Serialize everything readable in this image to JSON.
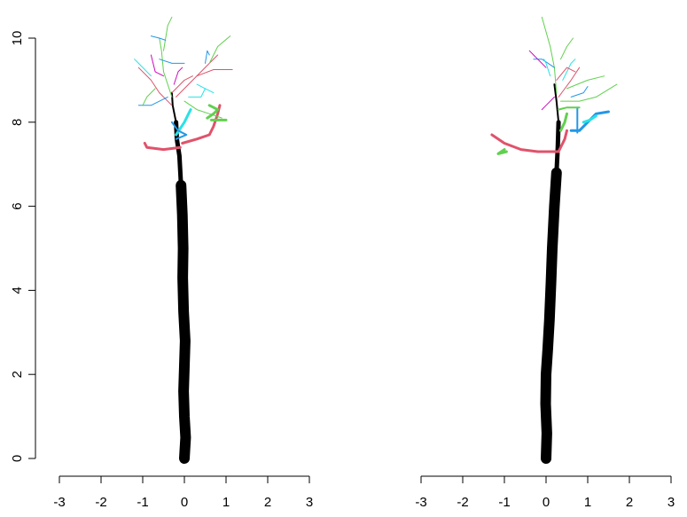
{
  "chart_data": [
    {
      "type": "line",
      "title": "",
      "xlabel": "",
      "ylabel": "",
      "xlim": [
        -3,
        3
      ],
      "ylim": [
        0,
        10
      ],
      "x_ticks": [
        "-3",
        "-2",
        "-1",
        "0",
        "1",
        "2",
        "3"
      ],
      "y_ticks": [
        "0",
        "2",
        "4",
        "6",
        "8",
        "10"
      ],
      "y_axis_shown": true,
      "grid": false,
      "legend": "none",
      "colors": {
        "trunk": "#000000",
        "red": "#DF536B",
        "green": "#61D04F",
        "blue": "#2297E6",
        "cyan": "#28E2E5",
        "magenta": "#CD0BBC"
      },
      "series": [
        {
          "color": "trunk",
          "width": 12,
          "points": [
            [
              0.0,
              0.0
            ],
            [
              0.03,
              0.5
            ],
            [
              0.0,
              1.0
            ],
            [
              -0.02,
              1.6
            ],
            [
              0.0,
              2.2
            ],
            [
              0.02,
              2.8
            ],
            [
              -0.02,
              3.5
            ],
            [
              -0.04,
              4.3
            ],
            [
              -0.03,
              5.0
            ],
            [
              -0.05,
              5.8
            ],
            [
              -0.08,
              6.5
            ]
          ]
        },
        {
          "color": "trunk",
          "width": 5,
          "points": [
            [
              -0.08,
              6.5
            ],
            [
              -0.12,
              7.2
            ],
            [
              -0.18,
              7.6
            ],
            [
              -0.2,
              8.0
            ]
          ]
        },
        {
          "color": "trunk",
          "width": 2,
          "points": [
            [
              -0.2,
              8.0
            ],
            [
              -0.28,
              8.4
            ],
            [
              -0.3,
              8.7
            ]
          ]
        },
        {
          "color": "red",
          "width": 3,
          "points": [
            [
              -0.1,
              7.4
            ],
            [
              -0.5,
              7.35
            ],
            [
              -0.9,
              7.4
            ],
            [
              -0.95,
              7.5
            ]
          ]
        },
        {
          "color": "red",
          "width": 3,
          "points": [
            [
              -0.05,
              7.5
            ],
            [
              0.3,
              7.6
            ],
            [
              0.6,
              7.7
            ],
            [
              0.7,
              7.9
            ],
            [
              0.8,
              8.2
            ],
            [
              0.85,
              8.4
            ]
          ]
        },
        {
          "color": "green",
          "width": 3,
          "points": [
            [
              0.55,
              8.1
            ],
            [
              0.7,
              8.2
            ],
            [
              0.8,
              8.3
            ],
            [
              0.6,
              8.4
            ]
          ]
        },
        {
          "color": "green",
          "width": 3,
          "points": [
            [
              0.65,
              8.05
            ],
            [
              1.0,
              8.05
            ]
          ]
        },
        {
          "color": "cyan",
          "width": 3,
          "points": [
            [
              -0.2,
              7.7
            ],
            [
              0.0,
              8.0
            ],
            [
              0.1,
              8.2
            ],
            [
              0.15,
              8.3
            ]
          ]
        },
        {
          "color": "blue",
          "width": 2,
          "points": [
            [
              -0.2,
              7.6
            ],
            [
              0.05,
              7.7
            ],
            [
              -0.15,
              7.8
            ],
            [
              -0.3,
              8.0
            ]
          ]
        },
        {
          "color": "red",
          "width": 1,
          "points": [
            [
              -0.3,
              8.4
            ],
            [
              -0.6,
              8.7
            ],
            [
              -0.8,
              9.0
            ],
            [
              -1.1,
              9.3
            ]
          ]
        },
        {
          "color": "green",
          "width": 1,
          "points": [
            [
              -0.3,
              8.6
            ],
            [
              -0.5,
              9.2
            ],
            [
              -0.55,
              9.7
            ],
            [
              -0.6,
              10.0
            ]
          ]
        },
        {
          "color": "green",
          "width": 1,
          "points": [
            [
              -0.5,
              9.7
            ],
            [
              -0.4,
              10.3
            ],
            [
              -0.3,
              10.5
            ]
          ]
        },
        {
          "color": "blue",
          "width": 1,
          "points": [
            [
              -0.6,
              9.5
            ],
            [
              -0.3,
              9.4
            ],
            [
              0.0,
              9.4
            ]
          ]
        },
        {
          "color": "cyan",
          "width": 1,
          "points": [
            [
              -0.8,
              9.1
            ],
            [
              -1.1,
              9.4
            ],
            [
              -1.2,
              9.5
            ]
          ]
        },
        {
          "color": "magenta",
          "width": 1,
          "points": [
            [
              -0.5,
              9.1
            ],
            [
              -0.7,
              9.2
            ],
            [
              -0.8,
              9.6
            ]
          ]
        },
        {
          "color": "blue",
          "width": 1,
          "points": [
            [
              -0.8,
              10.05
            ],
            [
              -0.6,
              10.0
            ],
            [
              -0.45,
              9.95
            ]
          ]
        },
        {
          "color": "red",
          "width": 1,
          "points": [
            [
              -0.2,
              8.6
            ],
            [
              0.2,
              9.0
            ],
            [
              0.6,
              9.4
            ],
            [
              0.8,
              9.6
            ]
          ]
        },
        {
          "color": "green",
          "width": 1,
          "points": [
            [
              0.6,
              9.4
            ],
            [
              0.8,
              9.8
            ],
            [
              1.1,
              10.05
            ]
          ]
        },
        {
          "color": "red",
          "width": 1,
          "points": [
            [
              0.3,
              9.1
            ],
            [
              0.7,
              9.25
            ],
            [
              1.15,
              9.25
            ]
          ]
        },
        {
          "color": "blue",
          "width": 1,
          "points": [
            [
              0.5,
              9.4
            ],
            [
              0.55,
              9.7
            ],
            [
              0.6,
              9.6
            ]
          ]
        },
        {
          "color": "cyan",
          "width": 1,
          "points": [
            [
              0.3,
              8.9
            ],
            [
              0.5,
              8.8
            ],
            [
              0.7,
              8.7
            ]
          ]
        },
        {
          "color": "green",
          "width": 1,
          "points": [
            [
              0.0,
              8.5
            ],
            [
              0.3,
              8.3
            ],
            [
              0.6,
              8.2
            ],
            [
              0.9,
              8.1
            ]
          ]
        },
        {
          "color": "red",
          "width": 1,
          "points": [
            [
              -0.3,
              8.7
            ],
            [
              0.0,
              9.0
            ],
            [
              0.2,
              9.1
            ]
          ]
        },
        {
          "color": "blue",
          "width": 1,
          "points": [
            [
              -0.4,
              8.6
            ],
            [
              -0.8,
              8.4
            ],
            [
              -1.1,
              8.4
            ]
          ]
        },
        {
          "color": "magenta",
          "width": 1,
          "points": [
            [
              -0.25,
              8.9
            ],
            [
              -0.15,
              9.2
            ],
            [
              -0.05,
              9.3
            ]
          ]
        },
        {
          "color": "green",
          "width": 1,
          "points": [
            [
              -0.7,
              8.8
            ],
            [
              -0.9,
              8.6
            ],
            [
              -1.0,
              8.4
            ]
          ]
        },
        {
          "color": "cyan",
          "width": 1,
          "points": [
            [
              0.1,
              8.6
            ],
            [
              0.4,
              8.6
            ],
            [
              0.5,
              8.8
            ]
          ]
        }
      ]
    },
    {
      "type": "line",
      "title": "",
      "xlabel": "",
      "ylabel": "",
      "xlim": [
        -3,
        3
      ],
      "ylim": [
        0,
        10
      ],
      "x_ticks": [
        "-3",
        "-2",
        "-1",
        "0",
        "1",
        "2",
        "3"
      ],
      "y_ticks": [],
      "y_axis_shown": false,
      "grid": false,
      "legend": "none",
      "colors": {
        "trunk": "#000000",
        "red": "#DF536B",
        "green": "#61D04F",
        "blue": "#2297E6",
        "cyan": "#28E2E5",
        "magenta": "#CD0BBC"
      },
      "series": [
        {
          "color": "trunk",
          "width": 12,
          "points": [
            [
              0.0,
              0.0
            ],
            [
              0.02,
              0.6
            ],
            [
              -0.01,
              1.3
            ],
            [
              0.0,
              2.0
            ],
            [
              0.04,
              2.6
            ],
            [
              0.08,
              3.3
            ],
            [
              0.12,
              4.2
            ],
            [
              0.15,
              5.0
            ],
            [
              0.2,
              6.0
            ],
            [
              0.25,
              6.8
            ]
          ]
        },
        {
          "color": "trunk",
          "width": 5,
          "points": [
            [
              0.25,
              6.8
            ],
            [
              0.28,
              7.4
            ],
            [
              0.3,
              8.0
            ]
          ]
        },
        {
          "color": "trunk",
          "width": 2,
          "points": [
            [
              0.3,
              8.0
            ],
            [
              0.25,
              8.5
            ],
            [
              0.2,
              8.9
            ]
          ]
        },
        {
          "color": "red",
          "width": 3,
          "points": [
            [
              0.3,
              7.3
            ],
            [
              -0.2,
              7.3
            ],
            [
              -0.6,
              7.35
            ],
            [
              -1.0,
              7.5
            ],
            [
              -1.3,
              7.7
            ]
          ]
        },
        {
          "color": "green",
          "width": 3,
          "points": [
            [
              -1.0,
              7.35
            ],
            [
              -1.15,
              7.25
            ],
            [
              -0.95,
              7.3
            ]
          ]
        },
        {
          "color": "red",
          "width": 3,
          "points": [
            [
              0.3,
              7.3
            ],
            [
              0.45,
              7.6
            ],
            [
              0.5,
              7.8
            ]
          ]
        },
        {
          "color": "green",
          "width": 3,
          "points": [
            [
              0.35,
              7.8
            ],
            [
              0.45,
              8.0
            ],
            [
              0.5,
              8.2
            ]
          ]
        },
        {
          "color": "blue",
          "width": 3,
          "points": [
            [
              0.6,
              7.8
            ],
            [
              0.8,
              7.8
            ],
            [
              1.0,
              8.0
            ],
            [
              1.2,
              8.2
            ],
            [
              1.5,
              8.25
            ]
          ]
        },
        {
          "color": "blue",
          "width": 2,
          "points": [
            [
              0.75,
              7.75
            ],
            [
              0.75,
              8.35
            ]
          ]
        },
        {
          "color": "green",
          "width": 2,
          "points": [
            [
              0.3,
              8.3
            ],
            [
              0.5,
              8.35
            ],
            [
              0.8,
              8.35
            ]
          ]
        },
        {
          "color": "cyan",
          "width": 3,
          "points": [
            [
              0.9,
              8.0
            ],
            [
              1.05,
              8.05
            ],
            [
              1.2,
              8.15
            ]
          ]
        },
        {
          "color": "green",
          "width": 1,
          "points": [
            [
              0.25,
              8.7
            ],
            [
              0.2,
              9.3
            ],
            [
              0.1,
              9.8
            ],
            [
              -0.1,
              10.5
            ]
          ]
        },
        {
          "color": "blue",
          "width": 1,
          "points": [
            [
              0.2,
              9.3
            ],
            [
              -0.1,
              9.5
            ],
            [
              -0.3,
              9.5
            ]
          ]
        },
        {
          "color": "magenta",
          "width": 1,
          "points": [
            [
              0.0,
              9.3
            ],
            [
              -0.3,
              9.6
            ],
            [
              -0.4,
              9.7
            ]
          ]
        },
        {
          "color": "red",
          "width": 1,
          "points": [
            [
              0.3,
              8.6
            ],
            [
              0.6,
              9.0
            ],
            [
              0.8,
              9.3
            ]
          ]
        },
        {
          "color": "green",
          "width": 1,
          "points": [
            [
              0.5,
              8.8
            ],
            [
              1.0,
              9.0
            ],
            [
              1.4,
              9.1
            ]
          ]
        },
        {
          "color": "cyan",
          "width": 1,
          "points": [
            [
              0.4,
              9.0
            ],
            [
              0.6,
              9.4
            ],
            [
              0.7,
              9.5
            ]
          ]
        },
        {
          "color": "green",
          "width": 1,
          "points": [
            [
              0.35,
              8.5
            ],
            [
              0.8,
              8.5
            ],
            [
              1.2,
              8.6
            ],
            [
              1.7,
              8.9
            ]
          ]
        },
        {
          "color": "blue",
          "width": 1,
          "points": [
            [
              0.6,
              8.6
            ],
            [
              0.9,
              8.7
            ],
            [
              1.0,
              8.85
            ]
          ]
        },
        {
          "color": "red",
          "width": 1,
          "points": [
            [
              0.25,
              9.0
            ],
            [
              0.5,
              9.3
            ],
            [
              0.7,
              9.2
            ]
          ]
        },
        {
          "color": "cyan",
          "width": 1,
          "points": [
            [
              0.1,
              9.1
            ],
            [
              0.0,
              9.4
            ],
            [
              -0.05,
              9.5
            ]
          ]
        },
        {
          "color": "green",
          "width": 1,
          "points": [
            [
              0.35,
              9.5
            ],
            [
              0.5,
              9.8
            ],
            [
              0.65,
              10.0
            ]
          ]
        },
        {
          "color": "magenta",
          "width": 1,
          "points": [
            [
              0.2,
              8.6
            ],
            [
              0.0,
              8.4
            ],
            [
              -0.1,
              8.3
            ]
          ]
        }
      ]
    }
  ]
}
